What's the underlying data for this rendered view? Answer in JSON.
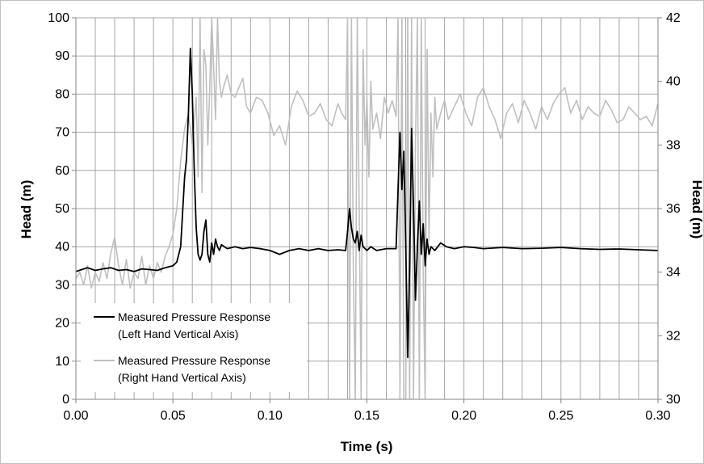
{
  "chart_data": {
    "type": "line",
    "xlabel": "Time (s)",
    "ylabel": "Head (m)",
    "y2label": "Head (m)",
    "xlim": [
      0,
      0.3
    ],
    "ylim": [
      0,
      100
    ],
    "y2lim": [
      30,
      42
    ],
    "xticks": [
      "0.00",
      "0.05",
      "0.10",
      "0.15",
      "0.20",
      "0.25",
      "0.30"
    ],
    "yticks": [
      "0",
      "10",
      "20",
      "30",
      "40",
      "50",
      "60",
      "70",
      "80",
      "90",
      "100"
    ],
    "y2ticks": [
      "30",
      "32",
      "34",
      "36",
      "38",
      "40",
      "42"
    ],
    "grid": true,
    "legend_position": "bottom-left",
    "series": [
      {
        "name": "Measured Pressure Response\n(Left Hand Vertical Axis)",
        "legend_lines": [
          "Measured Pressure Response",
          "(Left Hand Vertical Axis)"
        ],
        "axis": "left",
        "color": "#000000",
        "x": [
          0.0,
          0.003,
          0.006,
          0.01,
          0.014,
          0.018,
          0.022,
          0.026,
          0.03,
          0.034,
          0.038,
          0.042,
          0.046,
          0.05,
          0.052,
          0.054,
          0.056,
          0.057,
          0.058,
          0.059,
          0.06,
          0.061,
          0.062,
          0.063,
          0.064,
          0.065,
          0.066,
          0.067,
          0.068,
          0.069,
          0.07,
          0.071,
          0.072,
          0.073,
          0.074,
          0.075,
          0.078,
          0.082,
          0.086,
          0.09,
          0.095,
          0.1,
          0.105,
          0.11,
          0.115,
          0.12,
          0.125,
          0.13,
          0.135,
          0.139,
          0.14,
          0.141,
          0.142,
          0.143,
          0.144,
          0.145,
          0.146,
          0.147,
          0.148,
          0.15,
          0.152,
          0.155,
          0.16,
          0.165,
          0.167,
          0.168,
          0.169,
          0.17,
          0.171,
          0.172,
          0.173,
          0.174,
          0.175,
          0.176,
          0.177,
          0.178,
          0.179,
          0.18,
          0.181,
          0.182,
          0.183,
          0.185,
          0.188,
          0.191,
          0.195,
          0.2,
          0.205,
          0.21,
          0.22,
          0.23,
          0.24,
          0.25,
          0.26,
          0.27,
          0.28,
          0.29,
          0.3
        ],
        "values": [
          33.5,
          34,
          34.5,
          33.8,
          34.2,
          34.5,
          33.8,
          34,
          33.5,
          34.2,
          34,
          33.8,
          34.5,
          35,
          36,
          40,
          58,
          63,
          75,
          92,
          80,
          60,
          45,
          38,
          36.5,
          38,
          44,
          47,
          38,
          36,
          41,
          38,
          42,
          40,
          39,
          40.5,
          39.5,
          40,
          39.5,
          39.8,
          39.5,
          39,
          38,
          39,
          39.5,
          39,
          39.5,
          39,
          39.2,
          39,
          44,
          50,
          45,
          42,
          41,
          44,
          39,
          43,
          40,
          39,
          40,
          39,
          39.5,
          39.5,
          70,
          55,
          65,
          40,
          11,
          35,
          71,
          50,
          26,
          40,
          52,
          38,
          46,
          35,
          42,
          38,
          40,
          39,
          41,
          40,
          39.5,
          40,
          39.8,
          39.5,
          39.8,
          39.5,
          39.6,
          39.8,
          39.5,
          39.3,
          39.4,
          39.2,
          39
        ]
      },
      {
        "name": "Measured Pressure Response\n(Right Hand Vertical Axis)",
        "legend_lines": [
          "Measured Pressure Response",
          "(Right Hand Vertical Axis)"
        ],
        "axis": "right",
        "color": "#bfbfbf",
        "x": [
          0.0,
          0.002,
          0.004,
          0.006,
          0.008,
          0.01,
          0.012,
          0.014,
          0.016,
          0.018,
          0.02,
          0.022,
          0.024,
          0.026,
          0.028,
          0.03,
          0.032,
          0.034,
          0.036,
          0.038,
          0.04,
          0.042,
          0.044,
          0.046,
          0.048,
          0.05,
          0.052,
          0.054,
          0.056,
          0.058,
          0.06,
          0.062,
          0.063,
          0.064,
          0.065,
          0.066,
          0.067,
          0.068,
          0.069,
          0.07,
          0.071,
          0.072,
          0.073,
          0.074,
          0.075,
          0.076,
          0.078,
          0.08,
          0.082,
          0.084,
          0.086,
          0.088,
          0.09,
          0.093,
          0.096,
          0.099,
          0.102,
          0.105,
          0.108,
          0.111,
          0.114,
          0.117,
          0.12,
          0.123,
          0.126,
          0.129,
          0.132,
          0.135,
          0.137,
          0.139,
          0.14,
          0.141,
          0.142,
          0.143,
          0.144,
          0.145,
          0.146,
          0.147,
          0.148,
          0.149,
          0.15,
          0.151,
          0.152,
          0.153,
          0.155,
          0.157,
          0.159,
          0.161,
          0.163,
          0.165,
          0.166,
          0.167,
          0.168,
          0.169,
          0.17,
          0.171,
          0.172,
          0.173,
          0.174,
          0.175,
          0.176,
          0.177,
          0.178,
          0.179,
          0.18,
          0.181,
          0.182,
          0.183,
          0.184,
          0.185,
          0.186,
          0.188,
          0.19,
          0.192,
          0.195,
          0.198,
          0.201,
          0.204,
          0.207,
          0.21,
          0.213,
          0.216,
          0.219,
          0.222,
          0.225,
          0.228,
          0.231,
          0.234,
          0.237,
          0.24,
          0.243,
          0.246,
          0.249,
          0.252,
          0.255,
          0.258,
          0.261,
          0.264,
          0.267,
          0.27,
          0.273,
          0.276,
          0.279,
          0.282,
          0.285,
          0.288,
          0.291,
          0.294,
          0.297,
          0.3
        ],
        "values": [
          33.8,
          34.0,
          33.6,
          34.2,
          33.5,
          34.0,
          33.7,
          34.3,
          33.8,
          34.6,
          35.1,
          34.2,
          33.6,
          34.4,
          33.5,
          34.0,
          33.8,
          34.5,
          33.6,
          34.2,
          33.8,
          34.3,
          34.0,
          34.5,
          34.8,
          35.2,
          36.0,
          37.5,
          38.5,
          39.0,
          38.0,
          39.5,
          37.0,
          42.0,
          36.5,
          41.0,
          40.5,
          38.0,
          39.8,
          42.0,
          40.5,
          38.8,
          42.0,
          40.0,
          39.5,
          39.8,
          40.2,
          39.6,
          39.5,
          39.8,
          40.1,
          39.2,
          39.0,
          39.5,
          39.4,
          39.0,
          38.3,
          38.6,
          38.0,
          39.2,
          39.7,
          39.4,
          38.9,
          39.0,
          39.3,
          38.8,
          38.6,
          39.3,
          39.0,
          38.8,
          42.0,
          30.0,
          42.0,
          34.0,
          30.0,
          42.0,
          36.0,
          30.0,
          41.0,
          38.0,
          39.5,
          37.0,
          40.0,
          38.5,
          39.0,
          38.2,
          39.5,
          39.0,
          39.4,
          38.9,
          42.0,
          30.0,
          42.0,
          30.0,
          30.0,
          42.0,
          30.0,
          42.0,
          30.0,
          38.0,
          42.0,
          30.0,
          42.0,
          34.0,
          30.0,
          41.0,
          35.0,
          39.0,
          37.0,
          39.5,
          38.5,
          39.0,
          39.4,
          38.8,
          39.2,
          39.6,
          39.0,
          38.6,
          39.5,
          39.8,
          39.2,
          38.8,
          38.2,
          39.0,
          39.3,
          38.7,
          39.4,
          39.0,
          38.5,
          39.2,
          38.8,
          39.3,
          39.6,
          39.8,
          39.0,
          39.4,
          38.8,
          39.2,
          39.0,
          38.9,
          39.4,
          39.1,
          38.7,
          38.8,
          39.2,
          39.0,
          38.8,
          38.9,
          38.6,
          39.3
        ]
      }
    ]
  }
}
